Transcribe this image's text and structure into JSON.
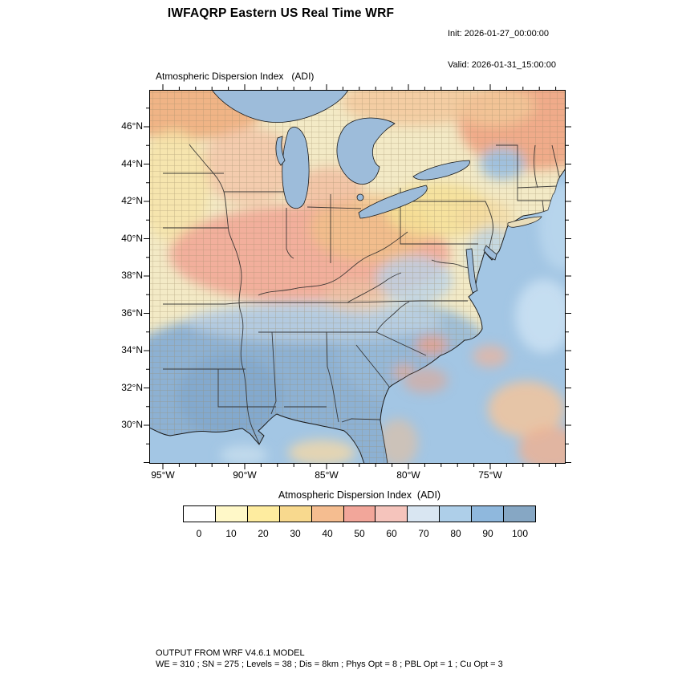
{
  "header": {
    "title": "IWFAQRP Eastern US Real Time WRF",
    "init": "Init: 2026-01-27_00:00:00",
    "valid": "Valid: 2026-01-31_15:00:00"
  },
  "map_panel": {
    "title": "Atmospheric Dispersion Index   (ADI)",
    "lat_ticks": [
      "46°N",
      "44°N",
      "42°N",
      "40°N",
      "38°N",
      "36°N",
      "34°N",
      "32°N",
      "30°N"
    ],
    "lon_ticks": [
      "95°W",
      "90°W",
      "85°W",
      "80°W",
      "75°W"
    ]
  },
  "colorbar": {
    "title": "Atmospheric Dispersion Index  (ADI)",
    "labels": [
      "0",
      "10",
      "20",
      "30",
      "40",
      "50",
      "60",
      "70",
      "80",
      "90",
      "100"
    ],
    "colors": [
      "#ffffff",
      "#fff8c8",
      "#feec9f",
      "#f8d98e",
      "#f5bd90",
      "#f2a69a",
      "#f5c4bc",
      "#d9e6f2",
      "#aecfe9",
      "#8fb8dd",
      "#86a7c4"
    ]
  },
  "footer": {
    "line1": "OUTPUT FROM WRF V4.6.1 MODEL",
    "line2": "WE = 310 ; SN = 275 ; Levels = 38 ; Dis = 8km ; Phys Opt = 8 ; PBL Opt = 1 ; Cu Opt = 3"
  }
}
